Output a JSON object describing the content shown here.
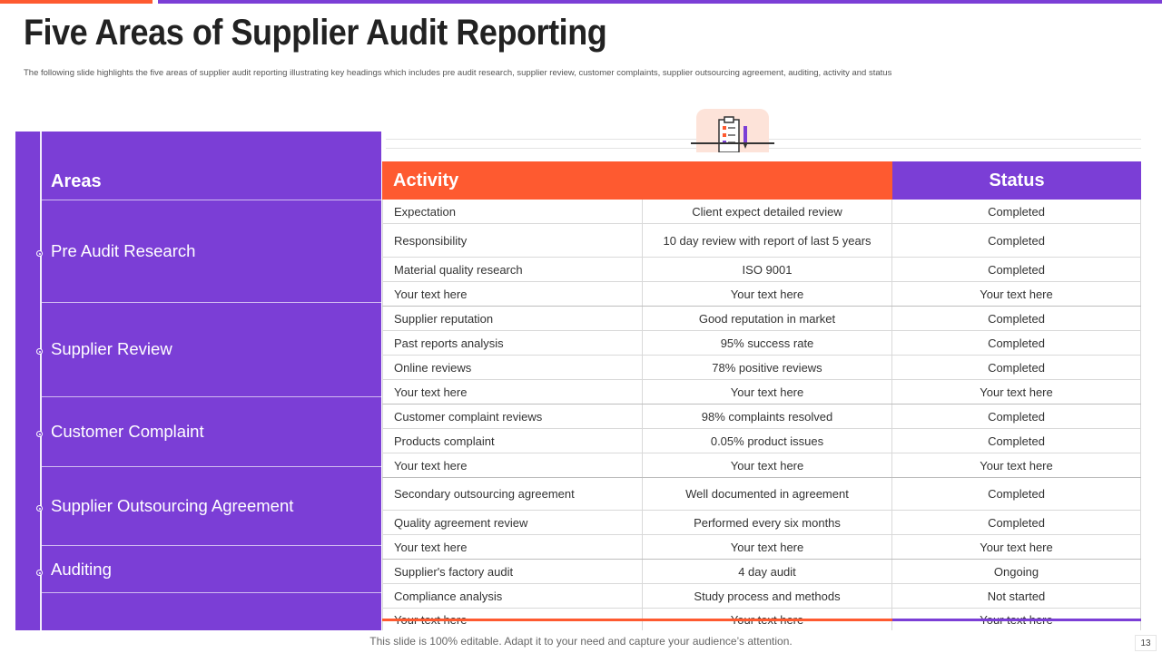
{
  "slide": {
    "title": "Five Areas of Supplier Audit Reporting",
    "subtitle": "The following slide highlights the five areas of supplier audit reporting illustrating key headings which includes pre audit research, supplier review, customer complaints, supplier outsourcing agreement, auditing, activity and status",
    "footer": "This slide is 100% editable. Adapt it to your need and capture your audience’s attention.",
    "page_number": "13"
  },
  "colors": {
    "accent_orange": "#fe5a30",
    "accent_purple": "#7b3ed6",
    "icon_badge": "#fde3d9"
  },
  "icons": {
    "header_icon": "clipboard-checklist-icon"
  },
  "areas": {
    "header": "Areas",
    "items": [
      "Pre Audit Research",
      "Supplier Review",
      "Customer Complaint",
      "Supplier Outsourcing Agreement",
      "Auditing"
    ]
  },
  "table": {
    "headers": {
      "activity": "Activity",
      "status": "Status"
    },
    "rows": [
      [
        "Expectation",
        "Client expect detailed review",
        "Completed"
      ],
      [
        "Responsibility",
        "10 day review  with report of last 5 years",
        "Completed"
      ],
      [
        "Material quality research",
        "ISO 9001",
        "Completed"
      ],
      [
        "Your text here",
        "Your text here",
        "Your text here"
      ],
      [
        "Supplier reputation",
        "Good reputation in market",
        "Completed"
      ],
      [
        "Past reports analysis",
        "95% success rate",
        "Completed"
      ],
      [
        "Online reviews",
        "78% positive reviews",
        "Completed"
      ],
      [
        "Your text here",
        "Your text here",
        "Your text here"
      ],
      [
        "Customer complaint reviews",
        "98% complaints resolved",
        "Completed"
      ],
      [
        "Products complaint",
        "0.05% product issues",
        "Completed"
      ],
      [
        "Your text here",
        "Your text here",
        "Your text here"
      ],
      [
        "Secondary outsourcing agreement",
        "Well documented in agreement",
        "Completed"
      ],
      [
        "Quality agreement review",
        "Performed  every  six months",
        "Completed"
      ],
      [
        "Your text here",
        "Your text here",
        "Your text here"
      ],
      [
        "Supplier's factory audit",
        "4 day audit",
        "Ongoing"
      ],
      [
        "Compliance analysis",
        "Study process and methods",
        "Not started"
      ],
      [
        "Your text here",
        "Your text here",
        "Your text here"
      ]
    ]
  }
}
